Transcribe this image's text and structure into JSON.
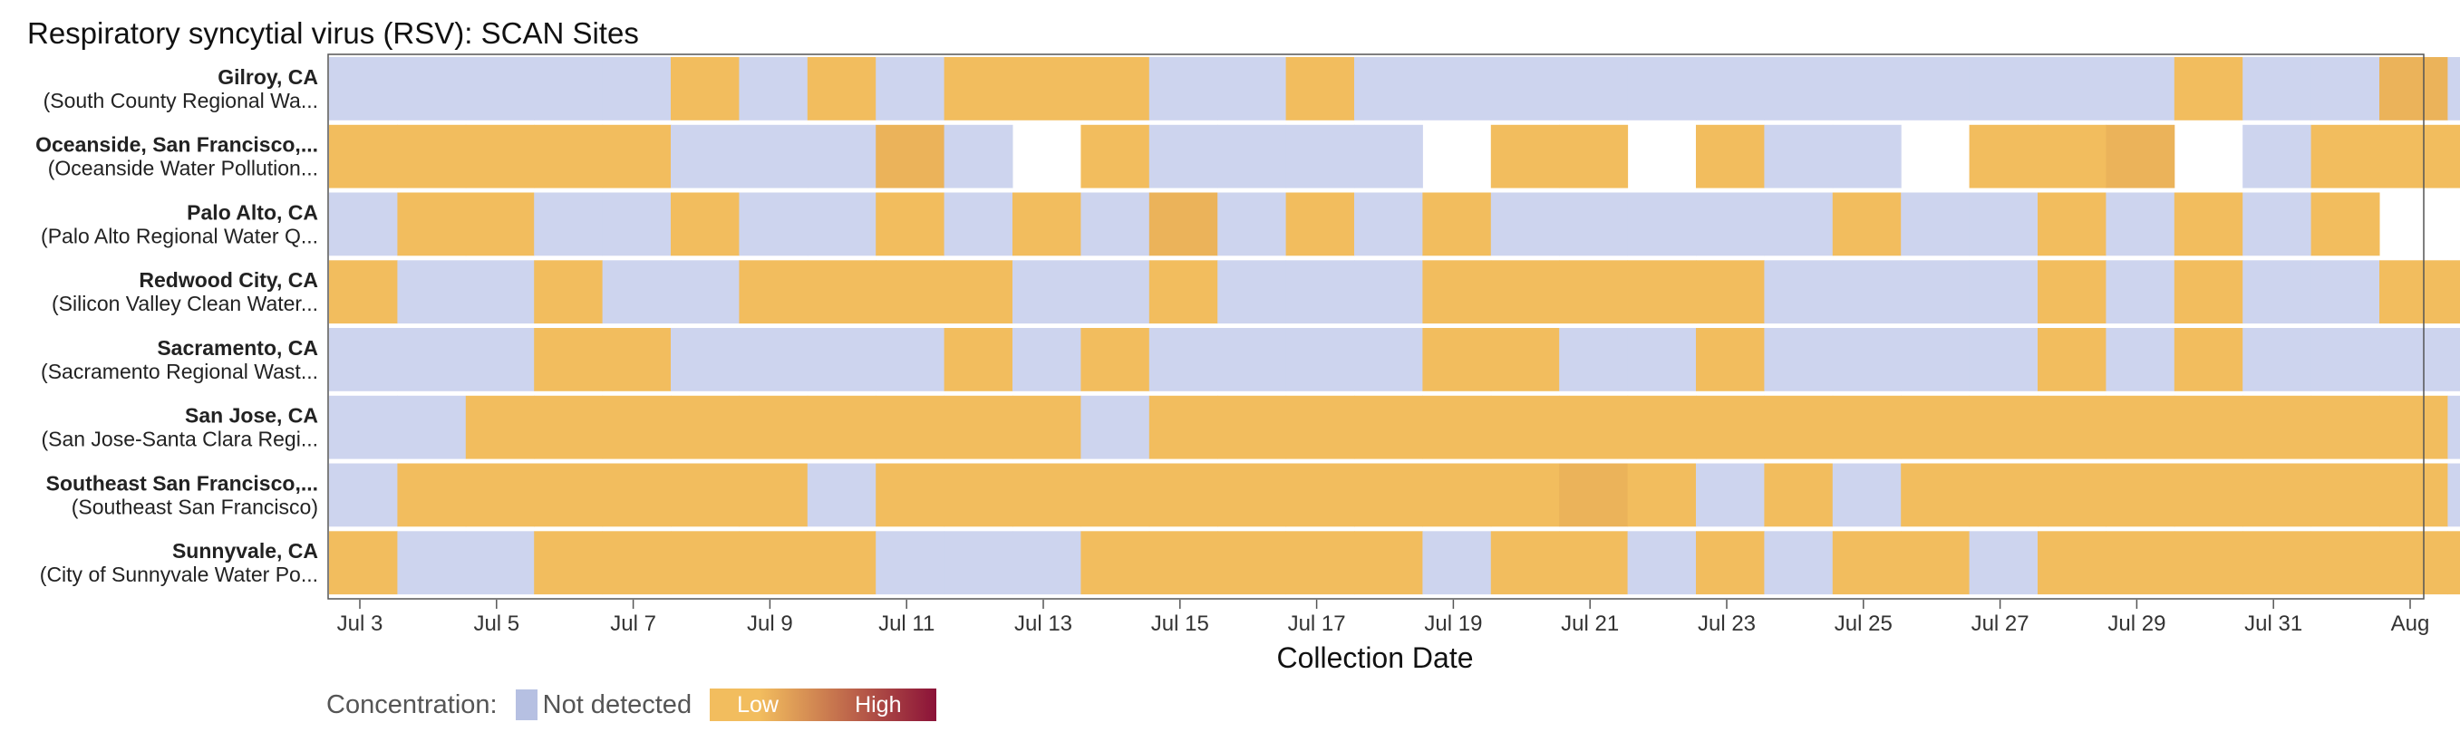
{
  "chart_data": {
    "type": "heatmap",
    "title": "Respiratory syncytial virus (RSV): SCAN Sites",
    "xlabel": "Collection Date",
    "ylabel": "",
    "x_start": "Jul 3",
    "x_tick_labels": [
      "Jul 3",
      "Jul 5",
      "Jul 7",
      "Jul 9",
      "Jul 11",
      "Jul 13",
      "Jul 15",
      "Jul 17",
      "Jul 19",
      "Jul 21",
      "Jul 23",
      "Jul 25",
      "Jul 27",
      "Jul 29",
      "Jul 31",
      "Aug"
    ],
    "value_legend": {
      "nd": "not detected",
      "L": "low",
      "M": "low-moderate",
      "": "no sample"
    },
    "rows": [
      {
        "name": "Gilroy, CA",
        "subtitle": "(South County Regional Wa...",
        "cells": [
          "nd",
          "nd",
          "nd",
          "nd",
          "nd",
          "L",
          "nd",
          "L",
          "nd",
          "L",
          "L",
          "L",
          "nd",
          "nd",
          "L",
          "nd",
          "nd",
          "nd",
          "nd",
          "nd",
          "nd",
          "nd",
          "nd",
          "nd",
          "nd",
          "nd",
          "nd",
          "L",
          "nd",
          "nd",
          "M",
          "nd",
          "nd"
        ]
      },
      {
        "name": "Oceanside, San Francisco,...",
        "subtitle": "(Oceanside Water Pollution...",
        "cells": [
          "L",
          "L",
          "L",
          "L",
          "L",
          "nd",
          "nd",
          "nd",
          "M",
          "nd",
          "",
          "L",
          "nd",
          "nd",
          "nd",
          "nd",
          "",
          "L",
          "L",
          "",
          "L",
          "nd",
          "nd",
          "",
          "L",
          "L",
          "M",
          "",
          "nd",
          "L",
          "L",
          "L"
        ]
      },
      {
        "name": "Palo Alto, CA",
        "subtitle": "(Palo Alto Regional Water Q...",
        "cells": [
          "nd",
          "L",
          "L",
          "nd",
          "nd",
          "L",
          "nd",
          "nd",
          "L",
          "nd",
          "L",
          "nd",
          "M",
          "nd",
          "L",
          "nd",
          "L",
          "nd",
          "nd",
          "nd",
          "nd",
          "nd",
          "L",
          "nd",
          "nd",
          "L",
          "nd",
          "L",
          "nd",
          "L",
          ""
        ]
      },
      {
        "name": "Redwood City, CA",
        "subtitle": "(Silicon Valley Clean Water...",
        "cells": [
          "L",
          "nd",
          "nd",
          "L",
          "nd",
          "nd",
          "L",
          "L",
          "L",
          "L",
          "nd",
          "nd",
          "L",
          "nd",
          "nd",
          "nd",
          "L",
          "L",
          "L",
          "L",
          "L",
          "nd",
          "nd",
          "nd",
          "nd",
          "L",
          "nd",
          "L",
          "nd",
          "nd",
          "L",
          "L"
        ]
      },
      {
        "name": "Sacramento, CA",
        "subtitle": "(Sacramento Regional Wast...",
        "cells": [
          "nd",
          "nd",
          "nd",
          "L",
          "L",
          "nd",
          "nd",
          "nd",
          "nd",
          "L",
          "nd",
          "L",
          "nd",
          "nd",
          "nd",
          "nd",
          "L",
          "L",
          "nd",
          "nd",
          "L",
          "nd",
          "nd",
          "nd",
          "nd",
          "L",
          "nd",
          "L",
          "nd",
          "nd",
          "nd",
          "nd"
        ]
      },
      {
        "name": "San Jose, CA",
        "subtitle": "(San Jose-Santa Clara Regi...",
        "cells": [
          "nd",
          "nd",
          "L",
          "L",
          "L",
          "L",
          "L",
          "L",
          "L",
          "L",
          "L",
          "nd",
          "L",
          "L",
          "L",
          "L",
          "L",
          "L",
          "L",
          "L",
          "L",
          "L",
          "L",
          "L",
          "L",
          "L",
          "L",
          "L",
          "L",
          "L",
          "L",
          "nd",
          ""
        ]
      },
      {
        "name": "Southeast San Francisco,...",
        "subtitle": "(Southeast San Francisco)",
        "cells": [
          "nd",
          "L",
          "L",
          "L",
          "L",
          "L",
          "L",
          "nd",
          "L",
          "L",
          "L",
          "L",
          "L",
          "L",
          "L",
          "L",
          "L",
          "L",
          "M",
          "L",
          "nd",
          "L",
          "nd",
          "L",
          "L",
          "L",
          "L",
          "L",
          "L",
          "L",
          "L",
          "nd",
          "L"
        ]
      },
      {
        "name": "Sunnyvale, CA",
        "subtitle": "(City of Sunnyvale Water Po...",
        "cells": [
          "L",
          "nd",
          "nd",
          "L",
          "L",
          "L",
          "L",
          "L",
          "nd",
          "nd",
          "nd",
          "L",
          "L",
          "L",
          "L",
          "L",
          "nd",
          "L",
          "L",
          "nd",
          "L",
          "nd",
          "L",
          "L",
          "nd",
          "L",
          "L",
          "L",
          "L",
          "L",
          "L",
          "L",
          "L"
        ]
      }
    ]
  },
  "legend": {
    "label": "Concentration:",
    "not_detected": "Not detected",
    "low": "Low",
    "high": "High"
  },
  "colors": {
    "not_detected": "#cdd4ee",
    "low": "#f2bd5e",
    "low_moderate": "#ebb35a",
    "high": "#8b1238",
    "legend_nd": "#b6c0e2"
  }
}
